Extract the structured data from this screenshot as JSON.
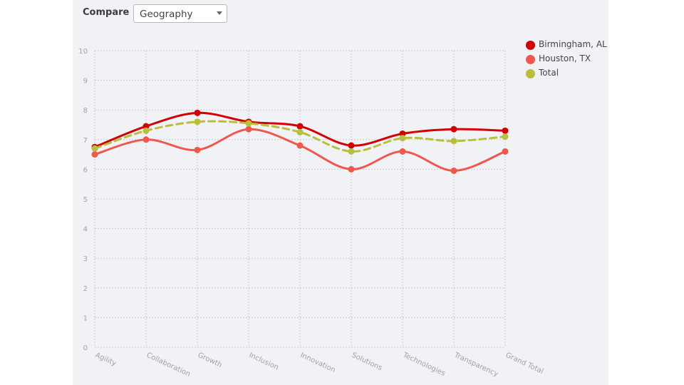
{
  "toolbar": {
    "compare_label": "Compare",
    "compare_select": {
      "value": "Geography"
    }
  },
  "chart_data": {
    "type": "line",
    "categories": [
      "Agility",
      "Collaboration",
      "Growth",
      "Inclusion",
      "Innovation",
      "Solutions",
      "Technologies",
      "Transparency",
      "Grand Total"
    ],
    "ylim": [
      0,
      10
    ],
    "yticks": [
      "0",
      "1",
      "2",
      "3",
      "4",
      "5",
      "6",
      "7",
      "8",
      "9",
      "10"
    ],
    "grid": true,
    "legend_position": "top-right",
    "series": [
      {
        "name": "Birmingham, AL",
        "color": "#d40000",
        "dashed": false,
        "values": [
          6.75,
          7.45,
          7.9,
          7.6,
          7.45,
          6.8,
          7.2,
          7.35,
          7.3
        ]
      },
      {
        "name": "Houston, TX",
        "color": "#f0584d",
        "dashed": false,
        "values": [
          6.5,
          7.0,
          6.65,
          7.35,
          6.8,
          6.0,
          6.6,
          5.95,
          6.6
        ]
      },
      {
        "name": "Total",
        "color": "#b8bf3a",
        "dashed": true,
        "values": [
          6.7,
          7.3,
          7.6,
          7.55,
          7.25,
          6.6,
          7.05,
          6.95,
          7.1
        ]
      }
    ]
  }
}
